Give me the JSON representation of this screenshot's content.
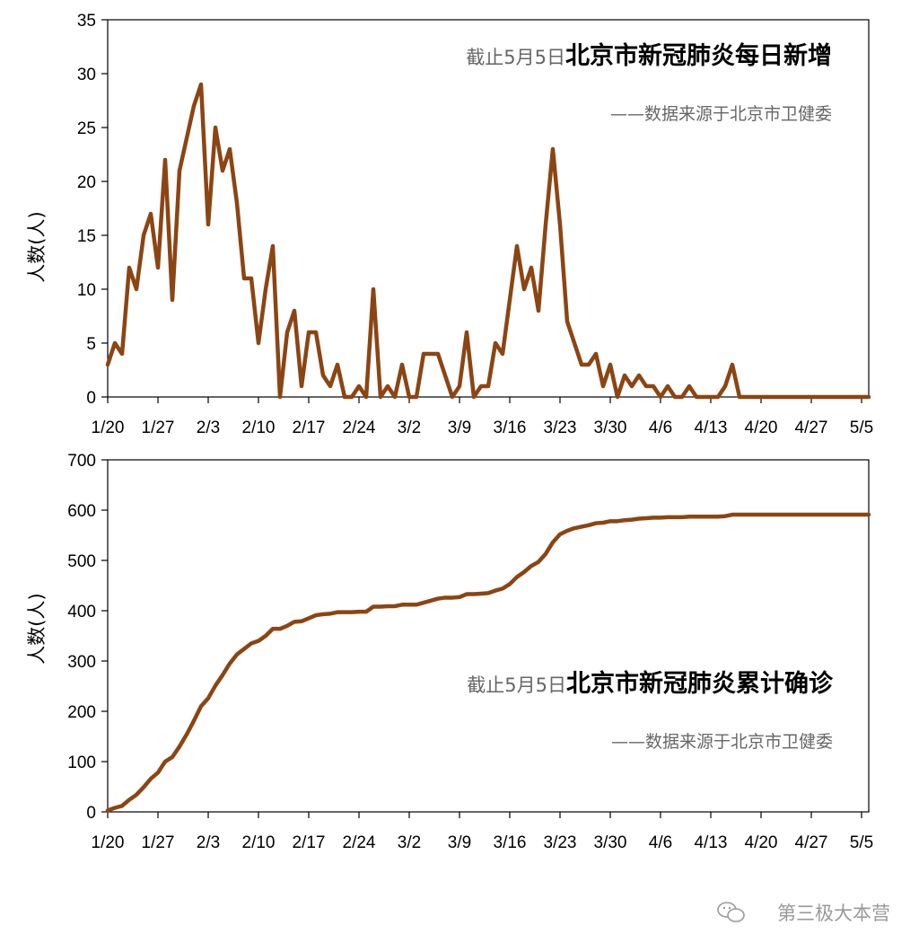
{
  "chart_data": [
    {
      "type": "line",
      "title_prefix": "截止5月5日",
      "title_main": "北京市新冠肺炎每日新增",
      "source": "——数据来源于北京市卫健委",
      "ylabel": "人数(人)",
      "ylim": [
        0,
        35
      ],
      "yticks": [
        0,
        5,
        10,
        15,
        20,
        25,
        30,
        35
      ],
      "x_start": "1/20",
      "x_end": "5/5",
      "xtick_labels": [
        "1/20",
        "1/27",
        "2/3",
        "2/10",
        "2/17",
        "2/24",
        "3/2",
        "3/9",
        "3/16",
        "3/23",
        "3/30",
        "4/6",
        "4/13",
        "4/20",
        "4/27",
        "5/5"
      ],
      "color": "#8b4513",
      "values": [
        3,
        5,
        4,
        12,
        10,
        15,
        17,
        12,
        22,
        9,
        21,
        24,
        27,
        29,
        16,
        25,
        21,
        23,
        18,
        11,
        11,
        5,
        10,
        14,
        0,
        6,
        8,
        1,
        6,
        6,
        2,
        1,
        3,
        0,
        0,
        1,
        0,
        10,
        0,
        1,
        0,
        3,
        0,
        0,
        4,
        4,
        4,
        2,
        0,
        1,
        6,
        0,
        1,
        1,
        5,
        4,
        9,
        14,
        10,
        12,
        8,
        16,
        23,
        16,
        7,
        5,
        3,
        3,
        4,
        1,
        3,
        0,
        2,
        1,
        2,
        1,
        1,
        0,
        1,
        0,
        0,
        1,
        0,
        0,
        0,
        0,
        1,
        3,
        0,
        0,
        0,
        0,
        0,
        0,
        0,
        0,
        0,
        0,
        0,
        0,
        0,
        0,
        0,
        0,
        0,
        0,
        0
      ]
    },
    {
      "type": "line",
      "title_prefix": "截止5月5日",
      "title_main": "北京市新冠肺炎累计确诊",
      "source": "——数据来源于北京市卫健委",
      "ylabel": "人数(人)",
      "ylim": [
        0,
        700
      ],
      "yticks": [
        0,
        100,
        200,
        300,
        400,
        500,
        600,
        700
      ],
      "x_start": "1/20",
      "x_end": "5/5",
      "xtick_labels": [
        "1/20",
        "1/27",
        "2/3",
        "2/10",
        "2/17",
        "2/24",
        "3/2",
        "3/9",
        "3/16",
        "3/23",
        "3/30",
        "4/6",
        "4/13",
        "4/20",
        "4/27",
        "5/5"
      ],
      "color": "#8b4513",
      "values_note": "running total of daily series",
      "values": []
    }
  ],
  "watermark": {
    "icon": "wechat-icon",
    "text": "第三极大本营"
  }
}
